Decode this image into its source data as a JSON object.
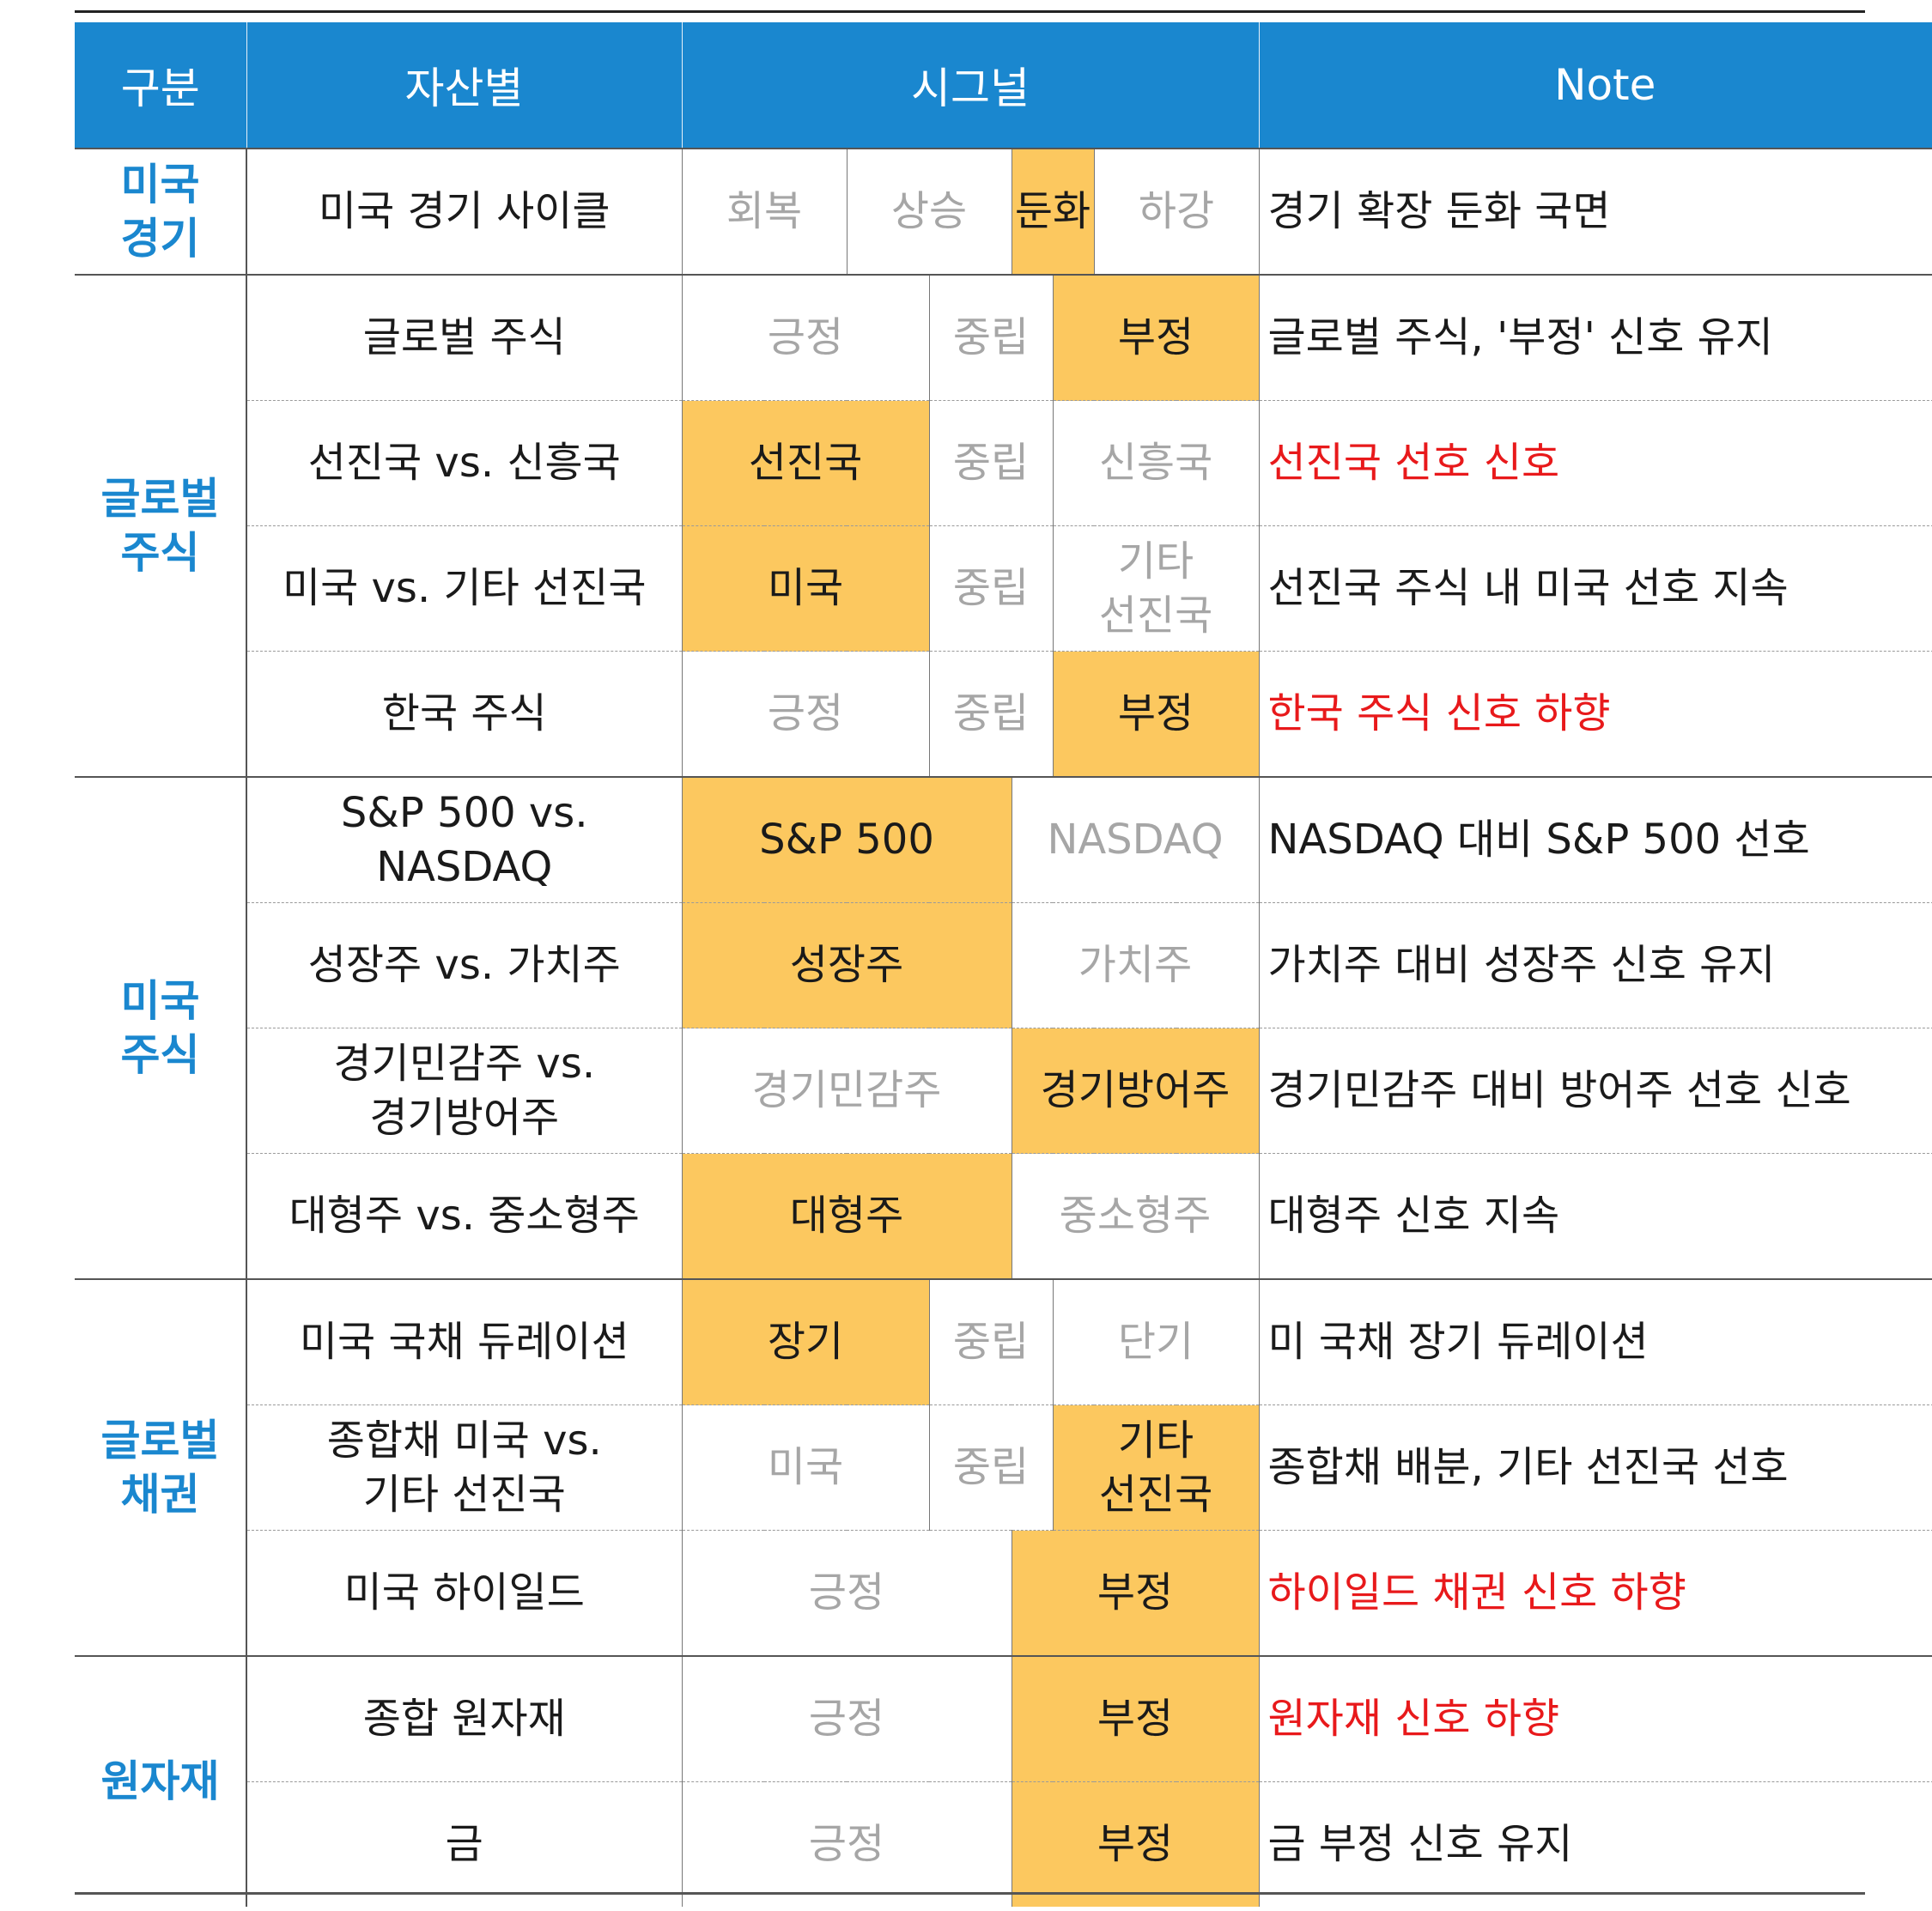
{
  "header": {
    "col_category": "구분",
    "col_asset": "자산별",
    "col_signal": "시그널",
    "col_note": "Note"
  },
  "colors": {
    "header_bg": "#1a87cf",
    "highlight": "#fcc85f",
    "category_text": "#1a87cf",
    "inactive_text": "#a6a6a6",
    "warning_note": "#e8191b"
  },
  "rows": [
    {
      "category": "미국\n경기",
      "asset": "미국 경기 사이클",
      "note": "경기 확장 둔화 국면",
      "note_red": false,
      "signals": [
        {
          "label": "회복",
          "active": false
        },
        {
          "label": "상승",
          "active": false
        },
        {
          "label": "둔화",
          "active": true
        },
        {
          "label": "하강",
          "active": false
        }
      ]
    },
    {
      "category": "글로벌\n주식",
      "asset": "글로벌 주식",
      "note": "글로벌 주식, '부정' 신호 유지",
      "note_red": false,
      "signals": [
        {
          "label": "긍정",
          "active": false
        },
        {
          "label": "중립",
          "active": false
        },
        {
          "label": "부정",
          "active": true
        }
      ]
    },
    {
      "asset": "선진국  vs. 신흥국",
      "note": "선진국 선호 신호",
      "note_red": true,
      "signals": [
        {
          "label": "선진국",
          "active": true
        },
        {
          "label": "중립",
          "active": false
        },
        {
          "label": "신흥국",
          "active": false
        }
      ]
    },
    {
      "asset": "미국 vs. 기타 선진국",
      "note": "선진국 주식 내 미국 선호 지속",
      "note_red": false,
      "signals": [
        {
          "label": "미국",
          "active": true
        },
        {
          "label": "중립",
          "active": false
        },
        {
          "label": "기타\n선진국",
          "active": false
        }
      ]
    },
    {
      "asset": "한국 주식",
      "note": "한국 주식 신호 하향",
      "note_red": true,
      "signals": [
        {
          "label": "긍정",
          "active": false
        },
        {
          "label": "중립",
          "active": false
        },
        {
          "label": "부정",
          "active": true
        }
      ]
    },
    {
      "category": "미국\n주식",
      "asset": "S&P 500 vs.\nNASDAQ",
      "note": "NASDAQ 대비 S&P 500 선호",
      "note_red": false,
      "signals": [
        {
          "label": "S&P 500",
          "active": true
        },
        {
          "label": "NASDAQ",
          "active": false
        }
      ]
    },
    {
      "asset": "성장주 vs. 가치주",
      "note": "가치주 대비 성장주 신호 유지",
      "note_red": false,
      "signals": [
        {
          "label": "성장주",
          "active": true
        },
        {
          "label": "가치주",
          "active": false
        }
      ]
    },
    {
      "asset": "경기민감주 vs.\n경기방어주",
      "note": "경기민감주 대비 방어주 선호 신호",
      "note_red": false,
      "signals": [
        {
          "label": "경기민감주",
          "active": false
        },
        {
          "label": "경기방어주",
          "active": true
        }
      ]
    },
    {
      "asset": "대형주 vs. 중소형주",
      "note": "대형주 신호 지속",
      "note_red": false,
      "signals": [
        {
          "label": "대형주",
          "active": true
        },
        {
          "label": "중소형주",
          "active": false
        }
      ]
    },
    {
      "category": "글로벌\n채권",
      "asset": "미국 국채 듀레이션",
      "note": "미 국채 장기 듀레이션",
      "note_red": false,
      "signals": [
        {
          "label": "장기",
          "active": true
        },
        {
          "label": "중립",
          "active": false
        },
        {
          "label": "단기",
          "active": false
        }
      ]
    },
    {
      "asset": "종합채 미국 vs.\n기타 선진국",
      "note": "종합채 배분, 기타 선진국 선호",
      "note_red": false,
      "signals": [
        {
          "label": "미국",
          "active": false
        },
        {
          "label": "중립",
          "active": false
        },
        {
          "label": "기타\n선진국",
          "active": true
        }
      ]
    },
    {
      "asset": "미국 하이일드",
      "note": "하이일드 채권 신호 하향",
      "note_red": true,
      "signals": [
        {
          "label": "긍정",
          "active": false
        },
        {
          "label": "부정",
          "active": true
        }
      ]
    },
    {
      "category": "원자재",
      "asset": "종합 원자재",
      "note": "원자재 신호 하향",
      "note_red": true,
      "signals": [
        {
          "label": "긍정",
          "active": false
        },
        {
          "label": "부정",
          "active": true
        }
      ]
    },
    {
      "asset": "금",
      "note": "금 부정 신호 유지",
      "note_red": false,
      "signals": [
        {
          "label": "긍정",
          "active": false
        },
        {
          "label": "부정",
          "active": true
        }
      ]
    }
  ]
}
